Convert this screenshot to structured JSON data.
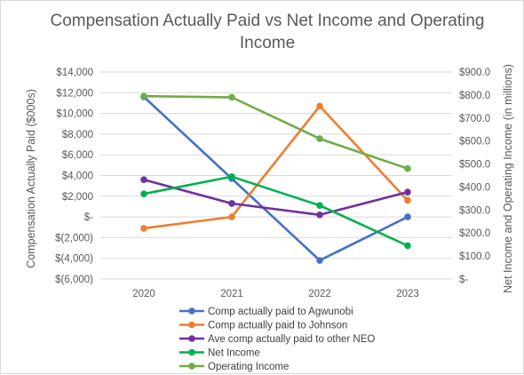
{
  "chart_data": {
    "type": "line",
    "title_line1": "Compensation Actually Paid vs Net Income and Operating",
    "title_line2": "Income",
    "categories": [
      "2020",
      "2021",
      "2022",
      "2023"
    ],
    "ylabel_left": "Compensation Actually Paid ($000s)",
    "ylabel_right": "Net Income and Operating Income (in millions)",
    "ylim_left": [
      -6000,
      14000
    ],
    "ylim_right": [
      0,
      900
    ],
    "left_ticks": [
      {
        "value": 14000,
        "label": "$14,000"
      },
      {
        "value": 12000,
        "label": "$12,000"
      },
      {
        "value": 10000,
        "label": "$10,000"
      },
      {
        "value": 8000,
        "label": "$8,000"
      },
      {
        "value": 6000,
        "label": "$6,000"
      },
      {
        "value": 4000,
        "label": "$4,000"
      },
      {
        "value": 2000,
        "label": "$2,000"
      },
      {
        "value": 0,
        "label": "$-"
      },
      {
        "value": -2000,
        "label": "$(2,000)"
      },
      {
        "value": -4000,
        "label": "$(4,000)"
      },
      {
        "value": -6000,
        "label": "$(6,000)"
      }
    ],
    "right_ticks": [
      {
        "value": 900,
        "label": "$900.0"
      },
      {
        "value": 800,
        "label": "$800.0"
      },
      {
        "value": 700,
        "label": "$700.0"
      },
      {
        "value": 600,
        "label": "$600.0"
      },
      {
        "value": 500,
        "label": "$500.0"
      },
      {
        "value": 400,
        "label": "$400.0"
      },
      {
        "value": 300,
        "label": "$300.0"
      },
      {
        "value": 200,
        "label": "$200.0"
      },
      {
        "value": 100,
        "label": "$100.0"
      },
      {
        "value": 0,
        "label": "$-"
      }
    ],
    "grid": true,
    "legend_position": "bottom",
    "series": [
      {
        "name": "Comp actually paid to Agwunobi",
        "axis": "left",
        "color": "#4472c4",
        "values": [
          11600,
          3700,
          -4200,
          0
        ]
      },
      {
        "name": "Comp actually paid to Johnson",
        "axis": "left",
        "color": "#ed7d31",
        "values": [
          -1100,
          0,
          10700,
          1600
        ]
      },
      {
        "name": "Ave comp actually paid to other  NEO",
        "axis": "left",
        "color": "#7030a0",
        "values": [
          3600,
          1300,
          200,
          2400
        ]
      },
      {
        "name": "Net Income",
        "axis": "right",
        "color": "#00b050",
        "values": [
          370,
          445,
          320,
          145
        ]
      },
      {
        "name": "Operating Income",
        "axis": "right",
        "color": "#70ad47",
        "values": [
          795,
          790,
          610,
          480
        ]
      }
    ]
  }
}
